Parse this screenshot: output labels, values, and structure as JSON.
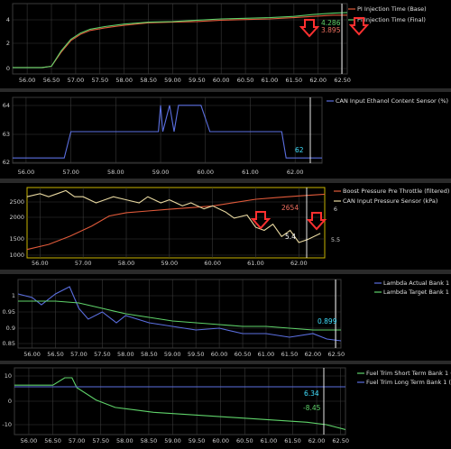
{
  "colors": {
    "background": "#000000",
    "grid": "#3a3a3a",
    "axis_text": "#cfcfcf",
    "legend_text": "#e0e0e0",
    "red": "#e05a3a",
    "green": "#5fd36a",
    "blue": "#5b6fe0",
    "white": "#ffffff",
    "tan": "#e8d8a0",
    "yellow_frame": "#c8b400",
    "cyan_label": "#40e0ff",
    "salmon": "#f07060",
    "arrow_red": "#ff3030"
  },
  "x_axis": {
    "ticks": [
      "56.00",
      "56.50",
      "57.00",
      "57.50",
      "58.00",
      "58.50",
      "59.00",
      "59.50",
      "60.00",
      "60.50",
      "61.00",
      "61.50",
      "62.00",
      "62.50"
    ],
    "ticks_panel2": [
      "56.00",
      "57.00",
      "58.00",
      "59.00",
      "60.00",
      "61.00",
      "62.00"
    ]
  },
  "panels": [
    {
      "id": "injection",
      "legend": [
        "PI Injection Time (Base)",
        "PI Injection Time (Final)"
      ],
      "y_ticks": [
        "4",
        "2",
        "0"
      ],
      "value_labels": [
        "4.286",
        "3.895"
      ]
    },
    {
      "id": "ethanol",
      "legend": [
        "CAN Input Ethanol Content Sensor (%)"
      ],
      "y_ticks": [
        "64",
        "63",
        "62"
      ],
      "value_labels": [
        "62"
      ]
    },
    {
      "id": "boost",
      "legend": [
        "Boost Pressure Pre Throttle (filtered) (kPa)",
        "CAN Input Pressure Sensor (kPa)"
      ],
      "y_ticks": [
        "2500",
        "2000",
        "1500",
        "1000"
      ],
      "y2_ticks": [
        "6",
        "5.5"
      ],
      "value_labels": [
        "2654",
        "5.4"
      ]
    },
    {
      "id": "lambda",
      "legend": [
        "Lambda Actual Bank 1 (-)",
        "Lambda Target Bank 1 (-)"
      ],
      "y_ticks": [
        "1",
        "0.95",
        "0.9",
        "0.85"
      ],
      "value_labels": [
        "0.899"
      ]
    },
    {
      "id": "fueltrim",
      "legend": [
        "Fuel Trim Short Term Bank 1 (%)",
        "Fuel Trim Long Term Bank 1 (%)"
      ],
      "y_ticks": [
        "10",
        "0",
        "-10"
      ],
      "value_labels": [
        "6.34",
        "-8.45"
      ]
    }
  ],
  "chart_data": [
    {
      "type": "line",
      "x_range": [
        55.7,
        62.6
      ],
      "ylim": [
        -0.5,
        5
      ],
      "series": [
        {
          "name": "PI Injection Time (Base)",
          "color": "#e05a3a",
          "x": [
            55.7,
            56.3,
            56.5,
            56.7,
            56.9,
            57.1,
            57.3,
            57.6,
            58.0,
            58.5,
            59.0,
            59.5,
            60.0,
            60.5,
            61.0,
            61.5,
            61.9,
            62.3,
            62.6
          ],
          "y": [
            0,
            0,
            0.1,
            1.2,
            2.1,
            2.6,
            2.9,
            3.1,
            3.3,
            3.5,
            3.55,
            3.6,
            3.7,
            3.75,
            3.8,
            3.9,
            4.0,
            4.1,
            4.1
          ]
        },
        {
          "name": "PI Injection Time (Final)",
          "color": "#5fd36a",
          "x": [
            55.7,
            56.3,
            56.5,
            56.7,
            56.9,
            57.1,
            57.3,
            57.6,
            58.0,
            58.5,
            59.0,
            59.5,
            60.0,
            60.5,
            61.0,
            61.5,
            61.9,
            62.3,
            62.6
          ],
          "y": [
            0,
            0,
            0.1,
            1.3,
            2.2,
            2.7,
            3.0,
            3.2,
            3.4,
            3.55,
            3.6,
            3.7,
            3.8,
            3.85,
            3.9,
            4.0,
            4.15,
            4.25,
            4.3
          ]
        }
      ]
    },
    {
      "type": "line",
      "x_range": [
        55.7,
        62.6
      ],
      "ylim": [
        61.8,
        64.3
      ],
      "series": [
        {
          "name": "CAN Input Ethanol Content Sensor (%)",
          "color": "#5b6fe0",
          "x": [
            55.7,
            56.85,
            57.0,
            58.95,
            59.0,
            59.05,
            59.2,
            59.3,
            59.4,
            59.9,
            60.1,
            60.2,
            61.7,
            61.8,
            62.6
          ],
          "y": [
            62,
            62,
            63,
            63,
            64,
            63,
            64,
            63,
            64,
            64,
            63,
            63,
            63,
            62,
            62
          ]
        }
      ]
    },
    {
      "type": "line",
      "x_range": [
        55.7,
        62.6
      ],
      "ylim": [
        800,
        2900
      ],
      "y2lim": [
        5.1,
        6.25
      ],
      "series": [
        {
          "name": "Boost Pressure Pre Throttle (filtered) (kPa)",
          "color": "#e05a3a",
          "axis": "left",
          "x": [
            55.7,
            56.2,
            56.7,
            57.2,
            57.6,
            58.0,
            58.5,
            59.0,
            59.5,
            60.0,
            60.5,
            61.0,
            61.5,
            62.0,
            62.6
          ],
          "y": [
            1050,
            1200,
            1450,
            1750,
            2050,
            2150,
            2200,
            2250,
            2300,
            2350,
            2450,
            2550,
            2600,
            2650,
            2700
          ]
        },
        {
          "name": "CAN Input Pressure Sensor (kPa)",
          "color": "#e8d8a0",
          "axis": "right",
          "x": [
            55.7,
            56.0,
            56.2,
            56.4,
            56.6,
            56.8,
            57.0,
            57.3,
            57.5,
            57.7,
            58.0,
            58.3,
            58.5,
            58.8,
            59.0,
            59.3,
            59.5,
            59.8,
            60.0,
            60.3,
            60.5,
            60.8,
            61.0,
            61.2,
            61.4,
            61.6,
            61.8,
            62.0,
            62.2,
            62.5
          ],
          "y": [
            6.1,
            6.15,
            6.1,
            6.15,
            6.2,
            6.1,
            6.1,
            6.0,
            6.05,
            6.1,
            6.05,
            6.0,
            6.1,
            6.0,
            6.05,
            5.95,
            6.0,
            5.9,
            5.95,
            5.85,
            5.75,
            5.8,
            5.6,
            5.55,
            5.65,
            5.45,
            5.55,
            5.35,
            5.4,
            5.5
          ]
        }
      ]
    },
    {
      "type": "line",
      "x_range": [
        55.7,
        62.6
      ],
      "ylim": [
        0.83,
        1.02
      ],
      "series": [
        {
          "name": "Lambda Actual Bank 1 (-)",
          "color": "#5b6fe0",
          "x": [
            55.7,
            56.0,
            56.2,
            56.5,
            56.8,
            57.0,
            57.2,
            57.5,
            57.8,
            58.0,
            58.5,
            59.0,
            59.5,
            60.0,
            60.5,
            61.0,
            61.5,
            62.0,
            62.3,
            62.6
          ],
          "y": [
            0.98,
            0.97,
            0.95,
            0.98,
            1.0,
            0.94,
            0.91,
            0.93,
            0.9,
            0.92,
            0.9,
            0.89,
            0.88,
            0.885,
            0.87,
            0.87,
            0.86,
            0.87,
            0.855,
            0.85
          ]
        },
        {
          "name": "Lambda Target Bank 1 (-)",
          "color": "#5fd36a",
          "x": [
            55.7,
            56.5,
            57.0,
            57.5,
            58.0,
            58.5,
            59.0,
            59.5,
            60.0,
            60.5,
            61.0,
            61.5,
            62.0,
            62.6
          ],
          "y": [
            0.96,
            0.96,
            0.955,
            0.94,
            0.925,
            0.915,
            0.905,
            0.9,
            0.895,
            0.89,
            0.89,
            0.885,
            0.88,
            0.88
          ]
        }
      ]
    },
    {
      "type": "line",
      "x_range": [
        55.7,
        62.6
      ],
      "ylim": [
        -13,
        14
      ],
      "series": [
        {
          "name": "Fuel Trim Short Term Bank 1 (%)",
          "color": "#5fd36a",
          "x": [
            55.7,
            56.5,
            56.75,
            56.9,
            57.0,
            57.4,
            57.8,
            58.2,
            58.6,
            59.0,
            59.4,
            59.8,
            60.2,
            60.6,
            61.0,
            61.4,
            61.8,
            62.2,
            62.6
          ],
          "y": [
            7,
            7,
            10,
            10,
            6,
            1,
            -2,
            -3,
            -4,
            -4.5,
            -5,
            -5.5,
            -6,
            -6.5,
            -7,
            -7.5,
            -8,
            -9,
            -11
          ]
        },
        {
          "name": "Fuel Trim Long Term Bank 1 (%)",
          "color": "#5b6fe0",
          "x": [
            55.7,
            62.6
          ],
          "y": [
            6.34,
            6.34
          ]
        }
      ]
    }
  ]
}
